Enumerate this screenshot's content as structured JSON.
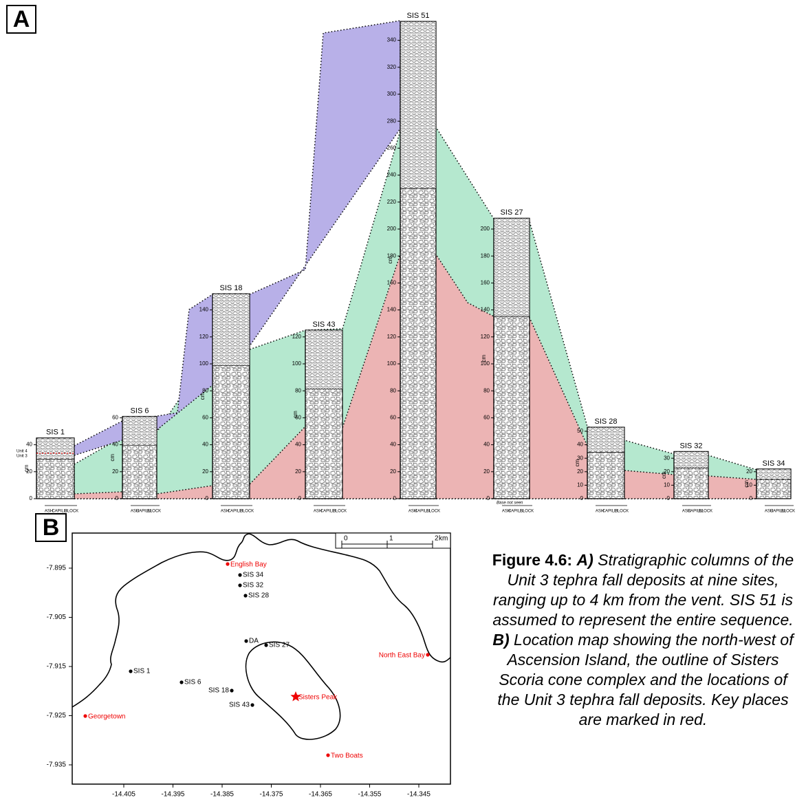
{
  "panel_a": {
    "label": "A",
    "columns": [
      {
        "name": "SIS 1",
        "axis_label": "cm",
        "yticks": [
          0,
          20,
          40
        ]
      },
      {
        "name": "SIS 6",
        "axis_label": "cm",
        "yticks": [
          0,
          20,
          40,
          60
        ]
      },
      {
        "name": "SIS 18",
        "axis_label": "cm",
        "yticks": [
          0,
          20,
          40,
          60,
          80,
          100,
          120,
          140
        ]
      },
      {
        "name": "SIS 43",
        "axis_label": "cm",
        "yticks": [
          0,
          20,
          40,
          60,
          80,
          100,
          120
        ]
      },
      {
        "name": "SIS 51",
        "axis_label": "cm",
        "yticks": [
          0,
          20,
          40,
          60,
          80,
          100,
          120,
          140,
          160,
          180,
          200,
          220,
          240,
          260,
          280,
          300,
          320,
          340
        ]
      },
      {
        "name": "SIS 27",
        "axis_label": "cm",
        "yticks": [
          0,
          20,
          40,
          60,
          80,
          100,
          120,
          140,
          160,
          180,
          200
        ]
      },
      {
        "name": "SIS 28",
        "axis_label": "cm",
        "yticks": [
          0,
          10,
          20,
          30,
          40,
          50
        ]
      },
      {
        "name": "SIS 32",
        "axis_label": "cm",
        "yticks": [
          0,
          10,
          20,
          30
        ]
      },
      {
        "name": "SIS 34",
        "axis_label": "cm",
        "yticks": [
          0,
          10,
          20
        ]
      }
    ],
    "unit_labels": [
      "Unit 4",
      "Unit 3"
    ],
    "grain_scale": [
      "ASH",
      "CAPILLI",
      "BLOCK"
    ],
    "base_note": "Base not seen"
  },
  "panel_b": {
    "label": "B",
    "xticks": [
      -14.405,
      -14.395,
      -14.385,
      -14.375,
      -14.365,
      -14.355,
      -14.345
    ],
    "yticks": [
      -7.895,
      -7.905,
      -7.915,
      -7.925,
      -7.935
    ],
    "scale_bar": {
      "ticks": [
        0,
        1,
        2
      ],
      "unit": "km"
    },
    "sites": [
      "SIS 34",
      "SIS 32",
      "SIS 28",
      "DA",
      "SIS 27",
      "SIS 1",
      "SIS 6",
      "SIS 18",
      "SIS 43"
    ],
    "places": [
      "English Bay",
      "North East Bay",
      "Georgetown",
      "Sisters Peak",
      "Two Boats"
    ]
  },
  "caption": {
    "label": "Figure 4.6:",
    "a_marker": "A)",
    "a_text": "Stratigraphic columns of the Unit 3 tephra fall deposits at nine sites, ranging up to 4 km from the vent. SIS 51 is assumed to represent the entire sequence.",
    "b_marker": "B)",
    "b_text": "Location map showing the north-west of Ascension Island, the outline of Sisters Scoria cone complex and the locations of the Unit 3 tephra fall deposits. Key places are marked in red."
  }
}
